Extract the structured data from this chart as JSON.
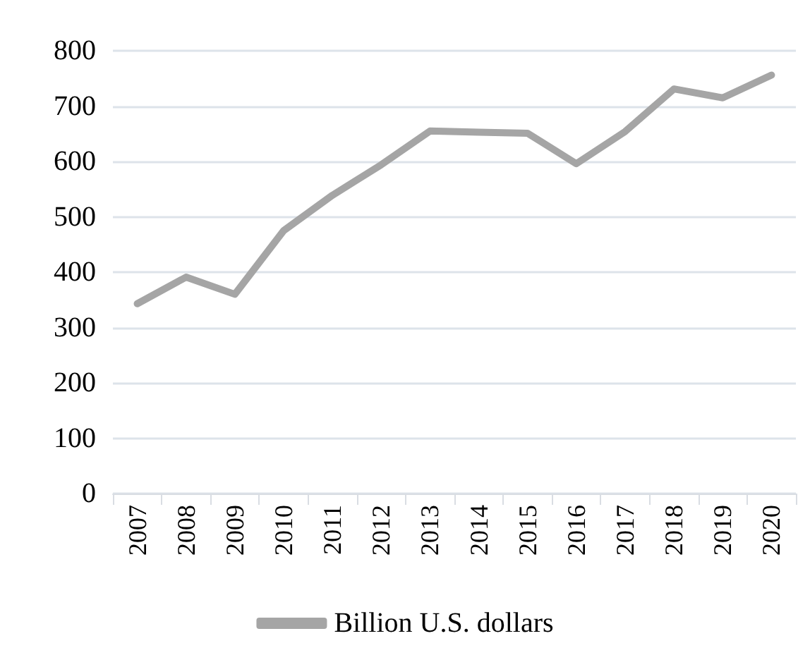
{
  "chart_data": {
    "type": "line",
    "categories": [
      "2007",
      "2008",
      "2009",
      "2010",
      "2011",
      "2012",
      "2013",
      "2014",
      "2015",
      "2016",
      "2017",
      "2018",
      "2019",
      "2020"
    ],
    "series": [
      {
        "name": "Billion U.S. dollars",
        "color": "#a5a5a5",
        "values": [
          343,
          391,
          360,
          475,
          539,
          594,
          655,
          653,
          651,
          596,
          654,
          731,
          715,
          756
        ]
      }
    ],
    "ylim": [
      0,
      800
    ],
    "yticks": [
      0,
      100,
      200,
      300,
      400,
      500,
      600,
      700,
      800
    ],
    "grid": "y",
    "legend": "bottom",
    "marker": "none",
    "line_style": "solid"
  }
}
